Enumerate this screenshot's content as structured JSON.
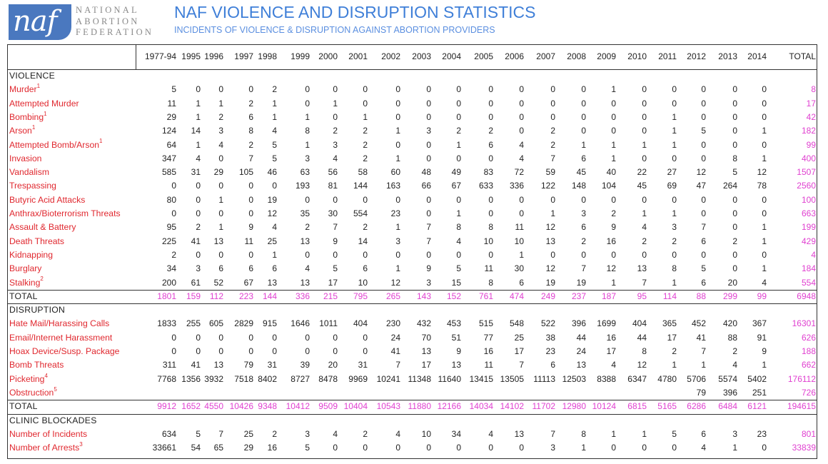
{
  "header": {
    "logo_text": "naf",
    "org_lines": [
      "NATIONAL",
      "ABORTION",
      "FEDERATION"
    ],
    "title": "NAF VIOLENCE AND DISRUPTION STATISTICS",
    "subtitle": "INCIDENTS OF VIOLENCE & DISRUPTION AGAINST ABORTION PROVIDERS"
  },
  "table": {
    "columns": [
      "1977-94",
      "1995",
      "1996",
      "1997",
      "1998",
      "1999",
      "2000",
      "2001",
      "2002",
      "2003",
      "2004",
      "2005",
      "2006",
      "2007",
      "2008",
      "2009",
      "2010",
      "2011",
      "2012",
      "2013",
      "2014",
      "TOTAL"
    ],
    "sections": [
      {
        "title": "VIOLENCE",
        "rows": [
          {
            "label": "Murder",
            "sup": "1",
            "values": [
              "5",
              "0",
              "0",
              "0",
              "2",
              "0",
              "0",
              "0",
              "0",
              "0",
              "0",
              "0",
              "0",
              "0",
              "0",
              "1",
              "0",
              "0",
              "0",
              "0",
              "0",
              "8"
            ]
          },
          {
            "label": "Attempted Murder",
            "sup": "",
            "values": [
              "11",
              "1",
              "1",
              "2",
              "1",
              "0",
              "1",
              "0",
              "0",
              "0",
              "0",
              "0",
              "0",
              "0",
              "0",
              "0",
              "0",
              "0",
              "0",
              "0",
              "0",
              "17"
            ]
          },
          {
            "label": "Bombing",
            "sup": "1",
            "values": [
              "29",
              "1",
              "2",
              "6",
              "1",
              "1",
              "0",
              "1",
              "0",
              "0",
              "0",
              "0",
              "0",
              "0",
              "0",
              "0",
              "0",
              "1",
              "0",
              "0",
              "0",
              "42"
            ]
          },
          {
            "label": "Arson",
            "sup": "1",
            "values": [
              "124",
              "14",
              "3",
              "8",
              "4",
              "8",
              "2",
              "2",
              "1",
              "3",
              "2",
              "2",
              "0",
              "2",
              "0",
              "0",
              "0",
              "1",
              "5",
              "0",
              "1",
              "182"
            ]
          },
          {
            "label": "Attempted Bomb/Arson",
            "sup": "1",
            "values": [
              "64",
              "1",
              "4",
              "2",
              "5",
              "1",
              "3",
              "2",
              "0",
              "0",
              "1",
              "6",
              "4",
              "2",
              "1",
              "1",
              "1",
              "1",
              "0",
              "0",
              "0",
              "99"
            ]
          },
          {
            "label": "Invasion",
            "sup": "",
            "values": [
              "347",
              "4",
              "0",
              "7",
              "5",
              "3",
              "4",
              "2",
              "1",
              "0",
              "0",
              "0",
              "4",
              "7",
              "6",
              "1",
              "0",
              "0",
              "0",
              "8",
              "1",
              "400"
            ]
          },
          {
            "label": "Vandalism",
            "sup": "",
            "values": [
              "585",
              "31",
              "29",
              "105",
              "46",
              "63",
              "56",
              "58",
              "60",
              "48",
              "49",
              "83",
              "72",
              "59",
              "45",
              "40",
              "22",
              "27",
              "12",
              "5",
              "12",
              "1507"
            ]
          },
          {
            "label": "Trespassing",
            "sup": "",
            "values": [
              "0",
              "0",
              "0",
              "0",
              "0",
              "193",
              "81",
              "144",
              "163",
              "66",
              "67",
              "633",
              "336",
              "122",
              "148",
              "104",
              "45",
              "69",
              "47",
              "264",
              "78",
              "2560"
            ]
          },
          {
            "label": "Butyric Acid Attacks",
            "sup": "",
            "values": [
              "80",
              "0",
              "1",
              "0",
              "19",
              "0",
              "0",
              "0",
              "0",
              "0",
              "0",
              "0",
              "0",
              "0",
              "0",
              "0",
              "0",
              "0",
              "0",
              "0",
              "0",
              "100"
            ]
          },
          {
            "label": "Anthrax/Bioterrorism Threats",
            "sup": "",
            "values": [
              "0",
              "0",
              "0",
              "0",
              "12",
              "35",
              "30",
              "554",
              "23",
              "0",
              "1",
              "0",
              "0",
              "1",
              "3",
              "2",
              "1",
              "1",
              "0",
              "0",
              "0",
              "663"
            ]
          },
          {
            "label": "Assault & Battery",
            "sup": "",
            "values": [
              "95",
              "2",
              "1",
              "9",
              "4",
              "2",
              "7",
              "2",
              "1",
              "7",
              "8",
              "8",
              "11",
              "12",
              "6",
              "9",
              "4",
              "3",
              "7",
              "0",
              "1",
              "199"
            ]
          },
          {
            "label": "Death Threats",
            "sup": "",
            "values": [
              "225",
              "41",
              "13",
              "11",
              "25",
              "13",
              "9",
              "14",
              "3",
              "7",
              "4",
              "10",
              "10",
              "13",
              "2",
              "16",
              "2",
              "2",
              "6",
              "2",
              "1",
              "429"
            ]
          },
          {
            "label": "Kidnapping",
            "sup": "",
            "values": [
              "2",
              "0",
              "0",
              "0",
              "1",
              "0",
              "0",
              "0",
              "0",
              "0",
              "0",
              "0",
              "1",
              "0",
              "0",
              "0",
              "0",
              "0",
              "0",
              "0",
              "0",
              "4"
            ]
          },
          {
            "label": "Burglary",
            "sup": "",
            "values": [
              "34",
              "3",
              "6",
              "6",
              "6",
              "4",
              "5",
              "6",
              "1",
              "9",
              "5",
              "11",
              "30",
              "12",
              "7",
              "12",
              "13",
              "8",
              "5",
              "0",
              "1",
              "184"
            ]
          },
          {
            "label": "Stalking",
            "sup": "2",
            "values": [
              "200",
              "61",
              "52",
              "67",
              "13",
              "13",
              "17",
              "10",
              "12",
              "3",
              "15",
              "8",
              "6",
              "19",
              "19",
              "1",
              "7",
              "1",
              "6",
              "20",
              "4",
              "554"
            ]
          }
        ],
        "total": {
          "label": "TOTAL",
          "values": [
            "1801",
            "159",
            "112",
            "223",
            "144",
            "336",
            "215",
            "795",
            "265",
            "143",
            "152",
            "761",
            "474",
            "249",
            "237",
            "187",
            "95",
            "114",
            "88",
            "299",
            "99",
            "6948"
          ]
        }
      },
      {
        "title": "DISRUPTION",
        "rows": [
          {
            "label": "Hate Mail/Harassing Calls",
            "sup": "",
            "values": [
              "1833",
              "255",
              "605",
              "2829",
              "915",
              "1646",
              "1011",
              "404",
              "230",
              "432",
              "453",
              "515",
              "548",
              "522",
              "396",
              "1699",
              "404",
              "365",
              "452",
              "420",
              "367",
              "16301"
            ]
          },
          {
            "label": "Email/Internet Harassment",
            "sup": "",
            "values": [
              "0",
              "0",
              "0",
              "0",
              "0",
              "0",
              "0",
              "0",
              "24",
              "70",
              "51",
              "77",
              "25",
              "38",
              "44",
              "16",
              "44",
              "17",
              "41",
              "88",
              "91",
              "626"
            ]
          },
          {
            "label": "Hoax Device/Susp. Package",
            "sup": "",
            "values": [
              "0",
              "0",
              "0",
              "0",
              "0",
              "0",
              "0",
              "0",
              "41",
              "13",
              "9",
              "16",
              "17",
              "23",
              "24",
              "17",
              "8",
              "2",
              "7",
              "2",
              "9",
              "188"
            ]
          },
          {
            "label": "Bomb Threats",
            "sup": "",
            "values": [
              "311",
              "41",
              "13",
              "79",
              "31",
              "39",
              "20",
              "31",
              "7",
              "17",
              "13",
              "11",
              "7",
              "6",
              "13",
              "4",
              "12",
              "1",
              "1",
              "4",
              "1",
              "662"
            ]
          },
          {
            "label": "Picketing",
            "sup": "4",
            "values": [
              "7768",
              "1356",
              "3932",
              "7518",
              "8402",
              "8727",
              "8478",
              "9969",
              "10241",
              "11348",
              "11640",
              "13415",
              "13505",
              "11113",
              "12503",
              "8388",
              "6347",
              "4780",
              "5706",
              "5574",
              "5402",
              "176112"
            ]
          },
          {
            "label": "Obstruction",
            "sup": "5",
            "values": [
              "",
              "",
              "",
              "",
              "",
              "",
              "",
              "",
              "",
              "",
              "",
              "",
              "",
              "",
              "",
              "",
              "",
              "",
              "79",
              "396",
              "251",
              "726"
            ]
          }
        ],
        "total": {
          "label": "TOTAL",
          "values": [
            "9912",
            "1652",
            "4550",
            "10426",
            "9348",
            "10412",
            "9509",
            "10404",
            "10543",
            "11880",
            "12166",
            "14034",
            "14102",
            "11702",
            "12980",
            "10124",
            "6815",
            "5165",
            "6286",
            "6484",
            "6121",
            "194615"
          ]
        }
      },
      {
        "title": "CLINIC BLOCKADES",
        "rows": [
          {
            "label": "Number of Incidents",
            "sup": "",
            "values": [
              "634",
              "5",
              "7",
              "25",
              "2",
              "3",
              "4",
              "2",
              "4",
              "10",
              "34",
              "4",
              "13",
              "7",
              "8",
              "1",
              "1",
              "5",
              "6",
              "3",
              "23",
              "801"
            ]
          },
          {
            "label": "Number of Arrests",
            "sup": "3",
            "values": [
              "33661",
              "54",
              "65",
              "29",
              "16",
              "5",
              "0",
              "0",
              "0",
              "0",
              "0",
              "0",
              "0",
              "3",
              "1",
              "0",
              "0",
              "0",
              "4",
              "1",
              "0",
              "33839"
            ]
          }
        ]
      }
    ]
  },
  "colors": {
    "title": "#3f7fd8",
    "label": "#e0282f",
    "total": "#e040d0",
    "logo": "#4a78bf"
  }
}
